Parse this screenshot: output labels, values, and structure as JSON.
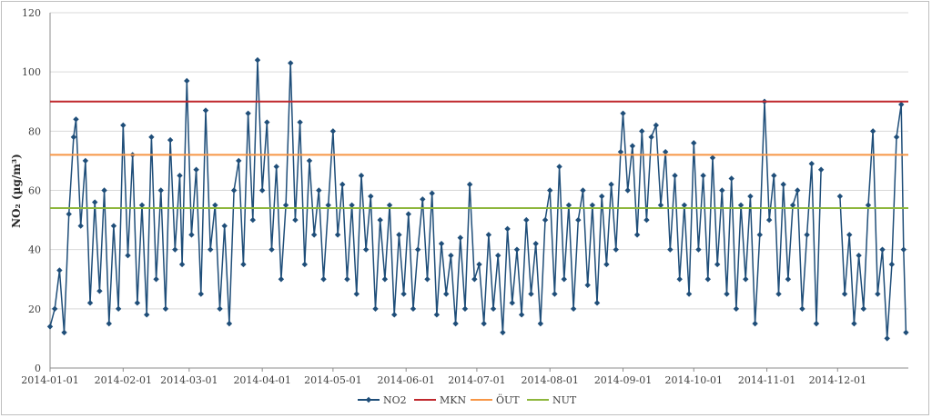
{
  "chart_data": {
    "type": "line",
    "title": "",
    "xlabel": "",
    "ylabel": "NO₂ (µg/m³)",
    "ylim": [
      0,
      120
    ],
    "yticks": [
      0,
      20,
      40,
      60,
      80,
      100,
      120
    ],
    "xlim": [
      "2014-01-01",
      "2014-12-31"
    ],
    "xtick_labels": [
      "2014-01-01",
      "2014-02-01",
      "2014-03-01",
      "2014-04-01",
      "2014-05-01",
      "2014-06-01",
      "2014-07-01",
      "2014-08-01",
      "2014-09-01",
      "2014-10-01",
      "2014-11-01",
      "2014-12-01"
    ],
    "grid": "horizontal",
    "legend_position": "bottom",
    "series": [
      {
        "name": "NO2",
        "color": "#1f4e79",
        "marker": "diamond",
        "points": [
          [
            "2014-01-01",
            14
          ],
          [
            "2014-01-03",
            20
          ],
          [
            "2014-01-05",
            33
          ],
          [
            "2014-01-07",
            12
          ],
          [
            "2014-01-09",
            52
          ],
          [
            "2014-01-11",
            78
          ],
          [
            "2014-01-12",
            84
          ],
          [
            "2014-01-14",
            48
          ],
          [
            "2014-01-16",
            70
          ],
          [
            "2014-01-18",
            22
          ],
          [
            "2014-01-20",
            56
          ],
          [
            "2014-01-22",
            26
          ],
          [
            "2014-01-24",
            60
          ],
          [
            "2014-01-26",
            15
          ],
          [
            "2014-01-28",
            48
          ],
          [
            "2014-01-30",
            20
          ],
          [
            "2014-02-01",
            82
          ],
          [
            "2014-02-03",
            38
          ],
          [
            "2014-02-05",
            72
          ],
          [
            "2014-02-07",
            22
          ],
          [
            "2014-02-09",
            55
          ],
          [
            "2014-02-11",
            18
          ],
          [
            "2014-02-13",
            78
          ],
          [
            "2014-02-15",
            30
          ],
          [
            "2014-02-17",
            60
          ],
          [
            "2014-02-19",
            20
          ],
          [
            "2014-02-21",
            77
          ],
          [
            "2014-02-23",
            40
          ],
          [
            "2014-02-25",
            65
          ],
          [
            "2014-02-26",
            35
          ],
          [
            "2014-02-28",
            97
          ],
          [
            "2014-03-02",
            45
          ],
          [
            "2014-03-04",
            67
          ],
          [
            "2014-03-06",
            25
          ],
          [
            "2014-03-08",
            87
          ],
          [
            "2014-03-10",
            40
          ],
          [
            "2014-03-12",
            55
          ],
          [
            "2014-03-14",
            20
          ],
          [
            "2014-03-16",
            48
          ],
          [
            "2014-03-18",
            15
          ],
          [
            "2014-03-20",
            60
          ],
          [
            "2014-03-22",
            70
          ],
          [
            "2014-03-24",
            35
          ],
          [
            "2014-03-26",
            86
          ],
          [
            "2014-03-28",
            50
          ],
          [
            "2014-03-30",
            104
          ],
          [
            "2014-04-01",
            60
          ],
          [
            "2014-04-03",
            83
          ],
          [
            "2014-04-05",
            40
          ],
          [
            "2014-04-07",
            68
          ],
          [
            "2014-04-09",
            30
          ],
          [
            "2014-04-11",
            55
          ],
          [
            "2014-04-13",
            103
          ],
          [
            "2014-04-15",
            50
          ],
          [
            "2014-04-17",
            83
          ],
          [
            "2014-04-19",
            35
          ],
          [
            "2014-04-21",
            70
          ],
          [
            "2014-04-23",
            45
          ],
          [
            "2014-04-25",
            60
          ],
          [
            "2014-04-27",
            30
          ],
          [
            "2014-04-29",
            55
          ],
          [
            "2014-05-01",
            80
          ],
          [
            "2014-05-03",
            45
          ],
          [
            "2014-05-05",
            62
          ],
          [
            "2014-05-07",
            30
          ],
          [
            "2014-05-09",
            55
          ],
          [
            "2014-05-11",
            25
          ],
          [
            "2014-05-13",
            65
          ],
          [
            "2014-05-15",
            40
          ],
          [
            "2014-05-17",
            58
          ],
          [
            "2014-05-19",
            20
          ],
          [
            "2014-05-21",
            50
          ],
          [
            "2014-05-23",
            30
          ],
          [
            "2014-05-25",
            55
          ],
          [
            "2014-05-27",
            18
          ],
          [
            "2014-05-29",
            45
          ],
          [
            "2014-05-31",
            25
          ],
          [
            "2014-06-02",
            52
          ],
          [
            "2014-06-04",
            20
          ],
          [
            "2014-06-06",
            40
          ],
          [
            "2014-06-08",
            57
          ],
          [
            "2014-06-10",
            30
          ],
          [
            "2014-06-12",
            59
          ],
          [
            "2014-06-14",
            18
          ],
          [
            "2014-06-16",
            42
          ],
          [
            "2014-06-18",
            25
          ],
          [
            "2014-06-20",
            38
          ],
          [
            "2014-06-22",
            15
          ],
          [
            "2014-06-24",
            44
          ],
          [
            "2014-06-26",
            20
          ],
          [
            "2014-06-28",
            62
          ],
          [
            "2014-06-30",
            30
          ],
          [
            "2014-07-02",
            35
          ],
          [
            "2014-07-04",
            15
          ],
          [
            "2014-07-06",
            45
          ],
          [
            "2014-07-08",
            20
          ],
          [
            "2014-07-10",
            38
          ],
          [
            "2014-07-12",
            12
          ],
          [
            "2014-07-14",
            47
          ],
          [
            "2014-07-16",
            22
          ],
          [
            "2014-07-18",
            40
          ],
          [
            "2014-07-20",
            18
          ],
          [
            "2014-07-22",
            50
          ],
          [
            "2014-07-24",
            25
          ],
          [
            "2014-07-26",
            42
          ],
          [
            "2014-07-28",
            15
          ],
          [
            "2014-07-30",
            50
          ],
          [
            "2014-08-01",
            60
          ],
          [
            "2014-08-03",
            25
          ],
          [
            "2014-08-05",
            68
          ],
          [
            "2014-08-07",
            30
          ],
          [
            "2014-08-09",
            55
          ],
          [
            "2014-08-11",
            20
          ],
          [
            "2014-08-13",
            50
          ],
          [
            "2014-08-15",
            60
          ],
          [
            "2014-08-17",
            28
          ],
          [
            "2014-08-19",
            55
          ],
          [
            "2014-08-21",
            22
          ],
          [
            "2014-08-23",
            58
          ],
          [
            "2014-08-25",
            35
          ],
          [
            "2014-08-27",
            62
          ],
          [
            "2014-08-29",
            40
          ],
          [
            "2014-08-31",
            73
          ],
          [
            "2014-09-01",
            86
          ],
          [
            "2014-09-03",
            60
          ],
          [
            "2014-09-05",
            75
          ],
          [
            "2014-09-07",
            45
          ],
          [
            "2014-09-09",
            80
          ],
          [
            "2014-09-11",
            50
          ],
          [
            "2014-09-13",
            78
          ],
          [
            "2014-09-15",
            82
          ],
          [
            "2014-09-17",
            55
          ],
          [
            "2014-09-19",
            73
          ],
          [
            "2014-09-21",
            40
          ],
          [
            "2014-09-23",
            65
          ],
          [
            "2014-09-25",
            30
          ],
          [
            "2014-09-27",
            55
          ],
          [
            "2014-09-29",
            25
          ],
          [
            "2014-10-01",
            76
          ],
          [
            "2014-10-03",
            40
          ],
          [
            "2014-10-05",
            65
          ],
          [
            "2014-10-07",
            30
          ],
          [
            "2014-10-09",
            71
          ],
          [
            "2014-10-11",
            35
          ],
          [
            "2014-10-13",
            60
          ],
          [
            "2014-10-15",
            25
          ],
          [
            "2014-10-17",
            64
          ],
          [
            "2014-10-19",
            20
          ],
          [
            "2014-10-21",
            55
          ],
          [
            "2014-10-23",
            30
          ],
          [
            "2014-10-25",
            58
          ],
          [
            "2014-10-27",
            15
          ],
          [
            "2014-10-29",
            45
          ],
          [
            "2014-10-31",
            90
          ],
          [
            "2014-11-02",
            50
          ],
          [
            "2014-11-04",
            65
          ],
          [
            "2014-11-06",
            25
          ],
          [
            "2014-11-08",
            62
          ],
          [
            "2014-11-10",
            30
          ],
          [
            "2014-11-12",
            55
          ],
          [
            "2014-11-14",
            60
          ],
          [
            "2014-11-16",
            20
          ],
          [
            "2014-11-18",
            45
          ],
          [
            "2014-11-20",
            69
          ],
          [
            "2014-11-22",
            15
          ],
          [
            "2014-11-24",
            67
          ],
          [
            "2014-12-02",
            58
          ],
          [
            "2014-12-04",
            25
          ],
          [
            "2014-12-06",
            45
          ],
          [
            "2014-12-08",
            15
          ],
          [
            "2014-12-10",
            38
          ],
          [
            "2014-12-12",
            20
          ],
          [
            "2014-12-14",
            55
          ],
          [
            "2014-12-16",
            80
          ],
          [
            "2014-12-18",
            25
          ],
          [
            "2014-12-20",
            40
          ],
          [
            "2014-12-22",
            10
          ],
          [
            "2014-12-24",
            35
          ],
          [
            "2014-12-26",
            78
          ],
          [
            "2014-12-28",
            89
          ],
          [
            "2014-12-29",
            40
          ],
          [
            "2014-12-30",
            12
          ]
        ]
      },
      {
        "name": "MKN",
        "color": "#c0282d",
        "type": "constant",
        "value": 90
      },
      {
        "name": "ÖUT",
        "color": "#f79646",
        "type": "constant",
        "value": 72
      },
      {
        "name": "NUT",
        "color": "#8db63c",
        "type": "constant",
        "value": 54
      }
    ]
  }
}
